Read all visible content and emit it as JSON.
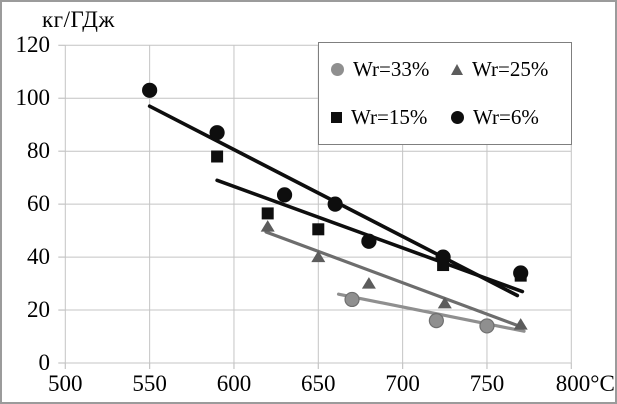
{
  "figure": {
    "title": "кг/ГДж"
  },
  "legend": {
    "items": [
      {
        "label": "Wr=33%",
        "marker": "circle",
        "color": "#8f8f8f"
      },
      {
        "label": "Wr=25%",
        "marker": "triangle",
        "color": "#5c5c5c"
      },
      {
        "label": "Wr=15%",
        "marker": "square",
        "color": "#0e0e0e"
      },
      {
        "label": "Wr=6%",
        "marker": "circle",
        "color": "#0e0e0e"
      }
    ]
  },
  "chart_data": {
    "type": "scatter",
    "title": "кг/ГДж",
    "xlabel": "",
    "ylabel": "кг/ГДж",
    "x_unit": "°C",
    "xlim": [
      500,
      800
    ],
    "ylim": [
      0,
      120
    ],
    "x_ticks": [
      500,
      550,
      600,
      650,
      700,
      750,
      800
    ],
    "x_tick_labels": [
      "500",
      "550",
      "600",
      "650",
      "700",
      "750",
      "800°C"
    ],
    "y_ticks": [
      0,
      20,
      40,
      60,
      80,
      100,
      120
    ],
    "y_tick_labels": [
      "0",
      "20",
      "40",
      "60",
      "80",
      "100",
      "120"
    ],
    "grid": true,
    "legend_position": "top-right",
    "colors": {
      "gridline": "#c4c4c4",
      "black_series": "#0e0e0e",
      "gray_light": "#8f8f8f",
      "gray_dark": "#5c5c5c",
      "gray_dark_line": "#6d6d6d"
    },
    "series": [
      {
        "name": "Wr=33%",
        "marker": "circle",
        "marker_color": "#8f8f8f",
        "marker_edge": "#6f6f6f",
        "line_color": "#8f8f8f",
        "points": [
          [
            670,
            24
          ],
          [
            720,
            16
          ],
          [
            750,
            14
          ]
        ],
        "trend_line": [
          [
            662,
            26
          ],
          [
            772,
            12
          ]
        ]
      },
      {
        "name": "Wr=25%",
        "marker": "triangle",
        "marker_color": "#5c5c5c",
        "marker_edge": "#5c5c5c",
        "line_color": "#6d6d6d",
        "points": [
          [
            620,
            51.5
          ],
          [
            650,
            40
          ],
          [
            680,
            30
          ],
          [
            725,
            22.5
          ],
          [
            770,
            14.5
          ]
        ],
        "trend_line": [
          [
            619,
            49.5
          ],
          [
            771,
            13.5
          ]
        ]
      },
      {
        "name": "Wr=15%",
        "marker": "square",
        "marker_color": "#0e0e0e",
        "marker_edge": "#0e0e0e",
        "line_color": "#0e0e0e",
        "points": [
          [
            590,
            78
          ],
          [
            620,
            56.5
          ],
          [
            650,
            50.5
          ],
          [
            724,
            37
          ],
          [
            770,
            33
          ]
        ],
        "trend_line": [
          [
            590,
            69
          ],
          [
            771,
            27
          ]
        ]
      },
      {
        "name": "Wr=6%",
        "marker": "circle",
        "marker_color": "#0e0e0e",
        "marker_edge": "#0e0e0e",
        "line_color": "#0e0e0e",
        "points": [
          [
            550,
            103
          ],
          [
            590,
            87
          ],
          [
            630,
            63.5
          ],
          [
            660,
            60
          ],
          [
            680,
            46
          ],
          [
            724,
            40
          ],
          [
            770,
            34
          ]
        ],
        "trend_line": [
          [
            550,
            97
          ],
          [
            768,
            25.5
          ]
        ]
      }
    ]
  }
}
